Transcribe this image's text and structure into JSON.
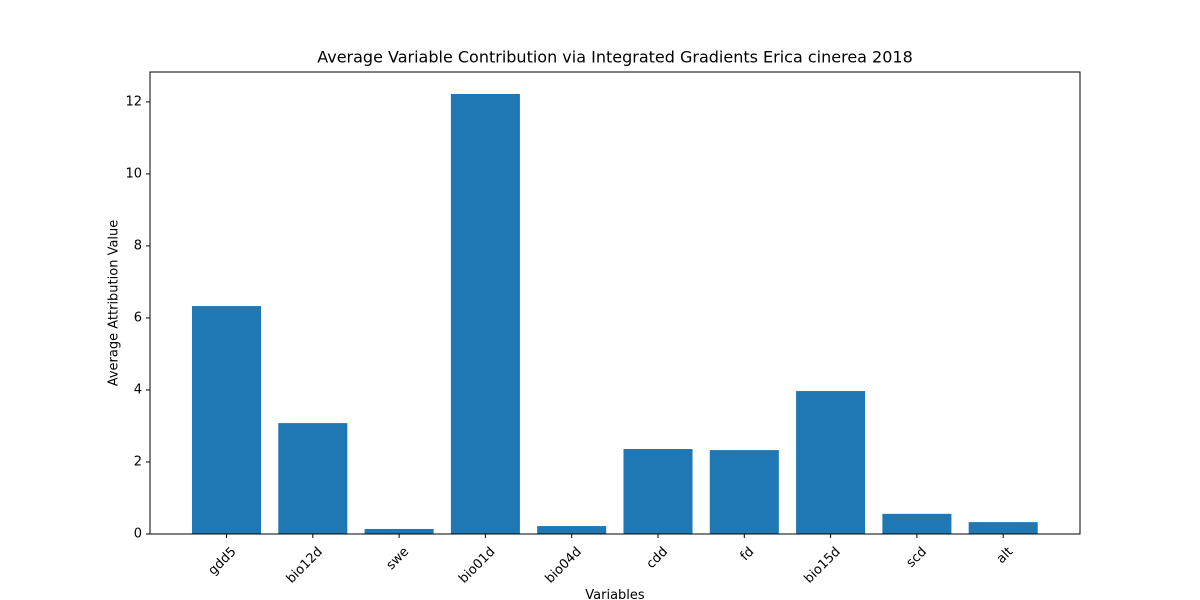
{
  "chart_data": {
    "type": "bar",
    "title": "Average Variable Contribution via Integrated Gradients Erica cinerea 2018",
    "x_label": "Variables",
    "y_label": "Average Attribution Value",
    "categories": [
      "gdd5",
      "bio12d",
      "swe",
      "bio01d",
      "bio04d",
      "cdd",
      "fd",
      "bio15d",
      "scd",
      "alt"
    ],
    "values": [
      6.33,
      3.08,
      0.14,
      12.22,
      0.22,
      2.36,
      2.33,
      3.97,
      0.56,
      0.33
    ],
    "color": "#1f77b4",
    "ylim": [
      0,
      12.83
    ],
    "yticks": [
      0,
      2,
      4,
      6,
      8,
      10,
      12
    ],
    "grid": false
  }
}
